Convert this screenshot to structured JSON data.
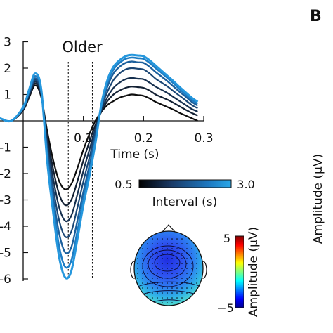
{
  "chart_data": {
    "type": "line",
    "title": "Older",
    "xlabel": "Time (s)",
    "ylabel": "",
    "x_ticks": [
      "0.1",
      "0.2",
      "0.3"
    ],
    "y_ticks": [
      "3",
      "2",
      "1",
      "-1",
      "-2",
      "-3",
      "-4",
      "-5",
      "-6"
    ],
    "xlim": [
      -0.06,
      0.3
    ],
    "ylim": [
      -6.2,
      3.4
    ],
    "grid": false,
    "markers": [
      0.075,
      0.115
    ],
    "x": [
      -0.06,
      -0.04,
      -0.02,
      0.0,
      0.01,
      0.02,
      0.03,
      0.04,
      0.05,
      0.06,
      0.07,
      0.08,
      0.09,
      0.1,
      0.11,
      0.12,
      0.13,
      0.14,
      0.15,
      0.16,
      0.17,
      0.18,
      0.19,
      0.2,
      0.21,
      0.22,
      0.23,
      0.24,
      0.25,
      0.26,
      0.27,
      0.28,
      0.29
    ],
    "series": [
      {
        "values": [
          0.1,
          0.1,
          0.0,
          0.4,
          0.9,
          1.35,
          0.9,
          -0.4,
          -1.5,
          -2.3,
          -2.6,
          -2.4,
          -1.8,
          -1.1,
          -0.5,
          0.0,
          0.35,
          0.6,
          0.75,
          0.88,
          0.95,
          1.0,
          0.98,
          0.95,
          0.85,
          0.72,
          0.62,
          0.52,
          0.42,
          0.3,
          0.2,
          0.1,
          0.0
        ]
      },
      {
        "values": [
          0.1,
          0.1,
          0.0,
          0.42,
          0.95,
          1.42,
          0.95,
          -0.6,
          -1.85,
          -2.8,
          -3.2,
          -3.0,
          -2.3,
          -1.5,
          -0.8,
          -0.15,
          0.35,
          0.75,
          1.0,
          1.15,
          1.25,
          1.3,
          1.28,
          1.25,
          1.15,
          1.0,
          0.9,
          0.8,
          0.68,
          0.55,
          0.42,
          0.3,
          0.2
        ]
      },
      {
        "values": [
          0.1,
          0.1,
          0.0,
          0.44,
          1.0,
          1.48,
          1.0,
          -0.8,
          -2.2,
          -3.3,
          -3.8,
          -3.6,
          -2.8,
          -1.9,
          -1.1,
          -0.3,
          0.4,
          0.9,
          1.25,
          1.45,
          1.58,
          1.63,
          1.6,
          1.58,
          1.45,
          1.3,
          1.18,
          1.05,
          0.9,
          0.75,
          0.6,
          0.45,
          0.35
        ]
      },
      {
        "values": [
          0.1,
          0.1,
          0.0,
          0.46,
          1.05,
          1.55,
          1.05,
          -1.0,
          -2.55,
          -3.8,
          -4.4,
          -4.2,
          -3.3,
          -2.3,
          -1.4,
          -0.4,
          0.5,
          1.1,
          1.55,
          1.8,
          1.95,
          2.0,
          1.98,
          1.95,
          1.8,
          1.6,
          1.45,
          1.3,
          1.12,
          0.95,
          0.78,
          0.6,
          0.48
        ]
      },
      {
        "values": [
          0.1,
          0.1,
          0.0,
          0.48,
          1.1,
          1.62,
          1.1,
          -1.2,
          -2.9,
          -4.3,
          -5.0,
          -4.8,
          -3.8,
          -2.7,
          -1.7,
          -0.6,
          0.55,
          1.3,
          1.8,
          2.05,
          2.2,
          2.25,
          2.22,
          2.2,
          2.05,
          1.85,
          1.68,
          1.5,
          1.3,
          1.1,
          0.92,
          0.72,
          0.58
        ]
      },
      {
        "values": [
          0.1,
          0.1,
          0.0,
          0.5,
          1.15,
          1.7,
          1.15,
          -1.4,
          -3.2,
          -4.8,
          -5.55,
          -5.3,
          -4.2,
          -3.0,
          -1.95,
          -0.75,
          0.6,
          1.45,
          1.95,
          2.2,
          2.35,
          2.4,
          2.38,
          2.35,
          2.2,
          2.0,
          1.82,
          1.62,
          1.42,
          1.2,
          1.0,
          0.8,
          0.65
        ]
      },
      {
        "values": [
          0.1,
          0.1,
          0.0,
          0.52,
          1.2,
          1.8,
          1.2,
          -1.55,
          -3.5,
          -5.2,
          -5.95,
          -5.7,
          -4.5,
          -3.2,
          -2.1,
          -0.85,
          0.65,
          1.55,
          2.05,
          2.3,
          2.45,
          2.5,
          2.48,
          2.45,
          2.3,
          2.1,
          1.9,
          1.7,
          1.5,
          1.28,
          1.08,
          0.88,
          0.72
        ]
      }
    ],
    "colorbar": {
      "min_label": "0.5",
      "max_label": "3.0",
      "label": "Interval (s)",
      "colors": [
        "#000000",
        "#1a3a66",
        "#1d78c0",
        "#29a7e8"
      ]
    },
    "topomap": {
      "colorbar_max": "5",
      "colorbar_min": "−5",
      "label": "Amplitude (μV)"
    }
  },
  "panel_b": {
    "letter": "B",
    "ylabel": "Amplitude (μV)"
  }
}
